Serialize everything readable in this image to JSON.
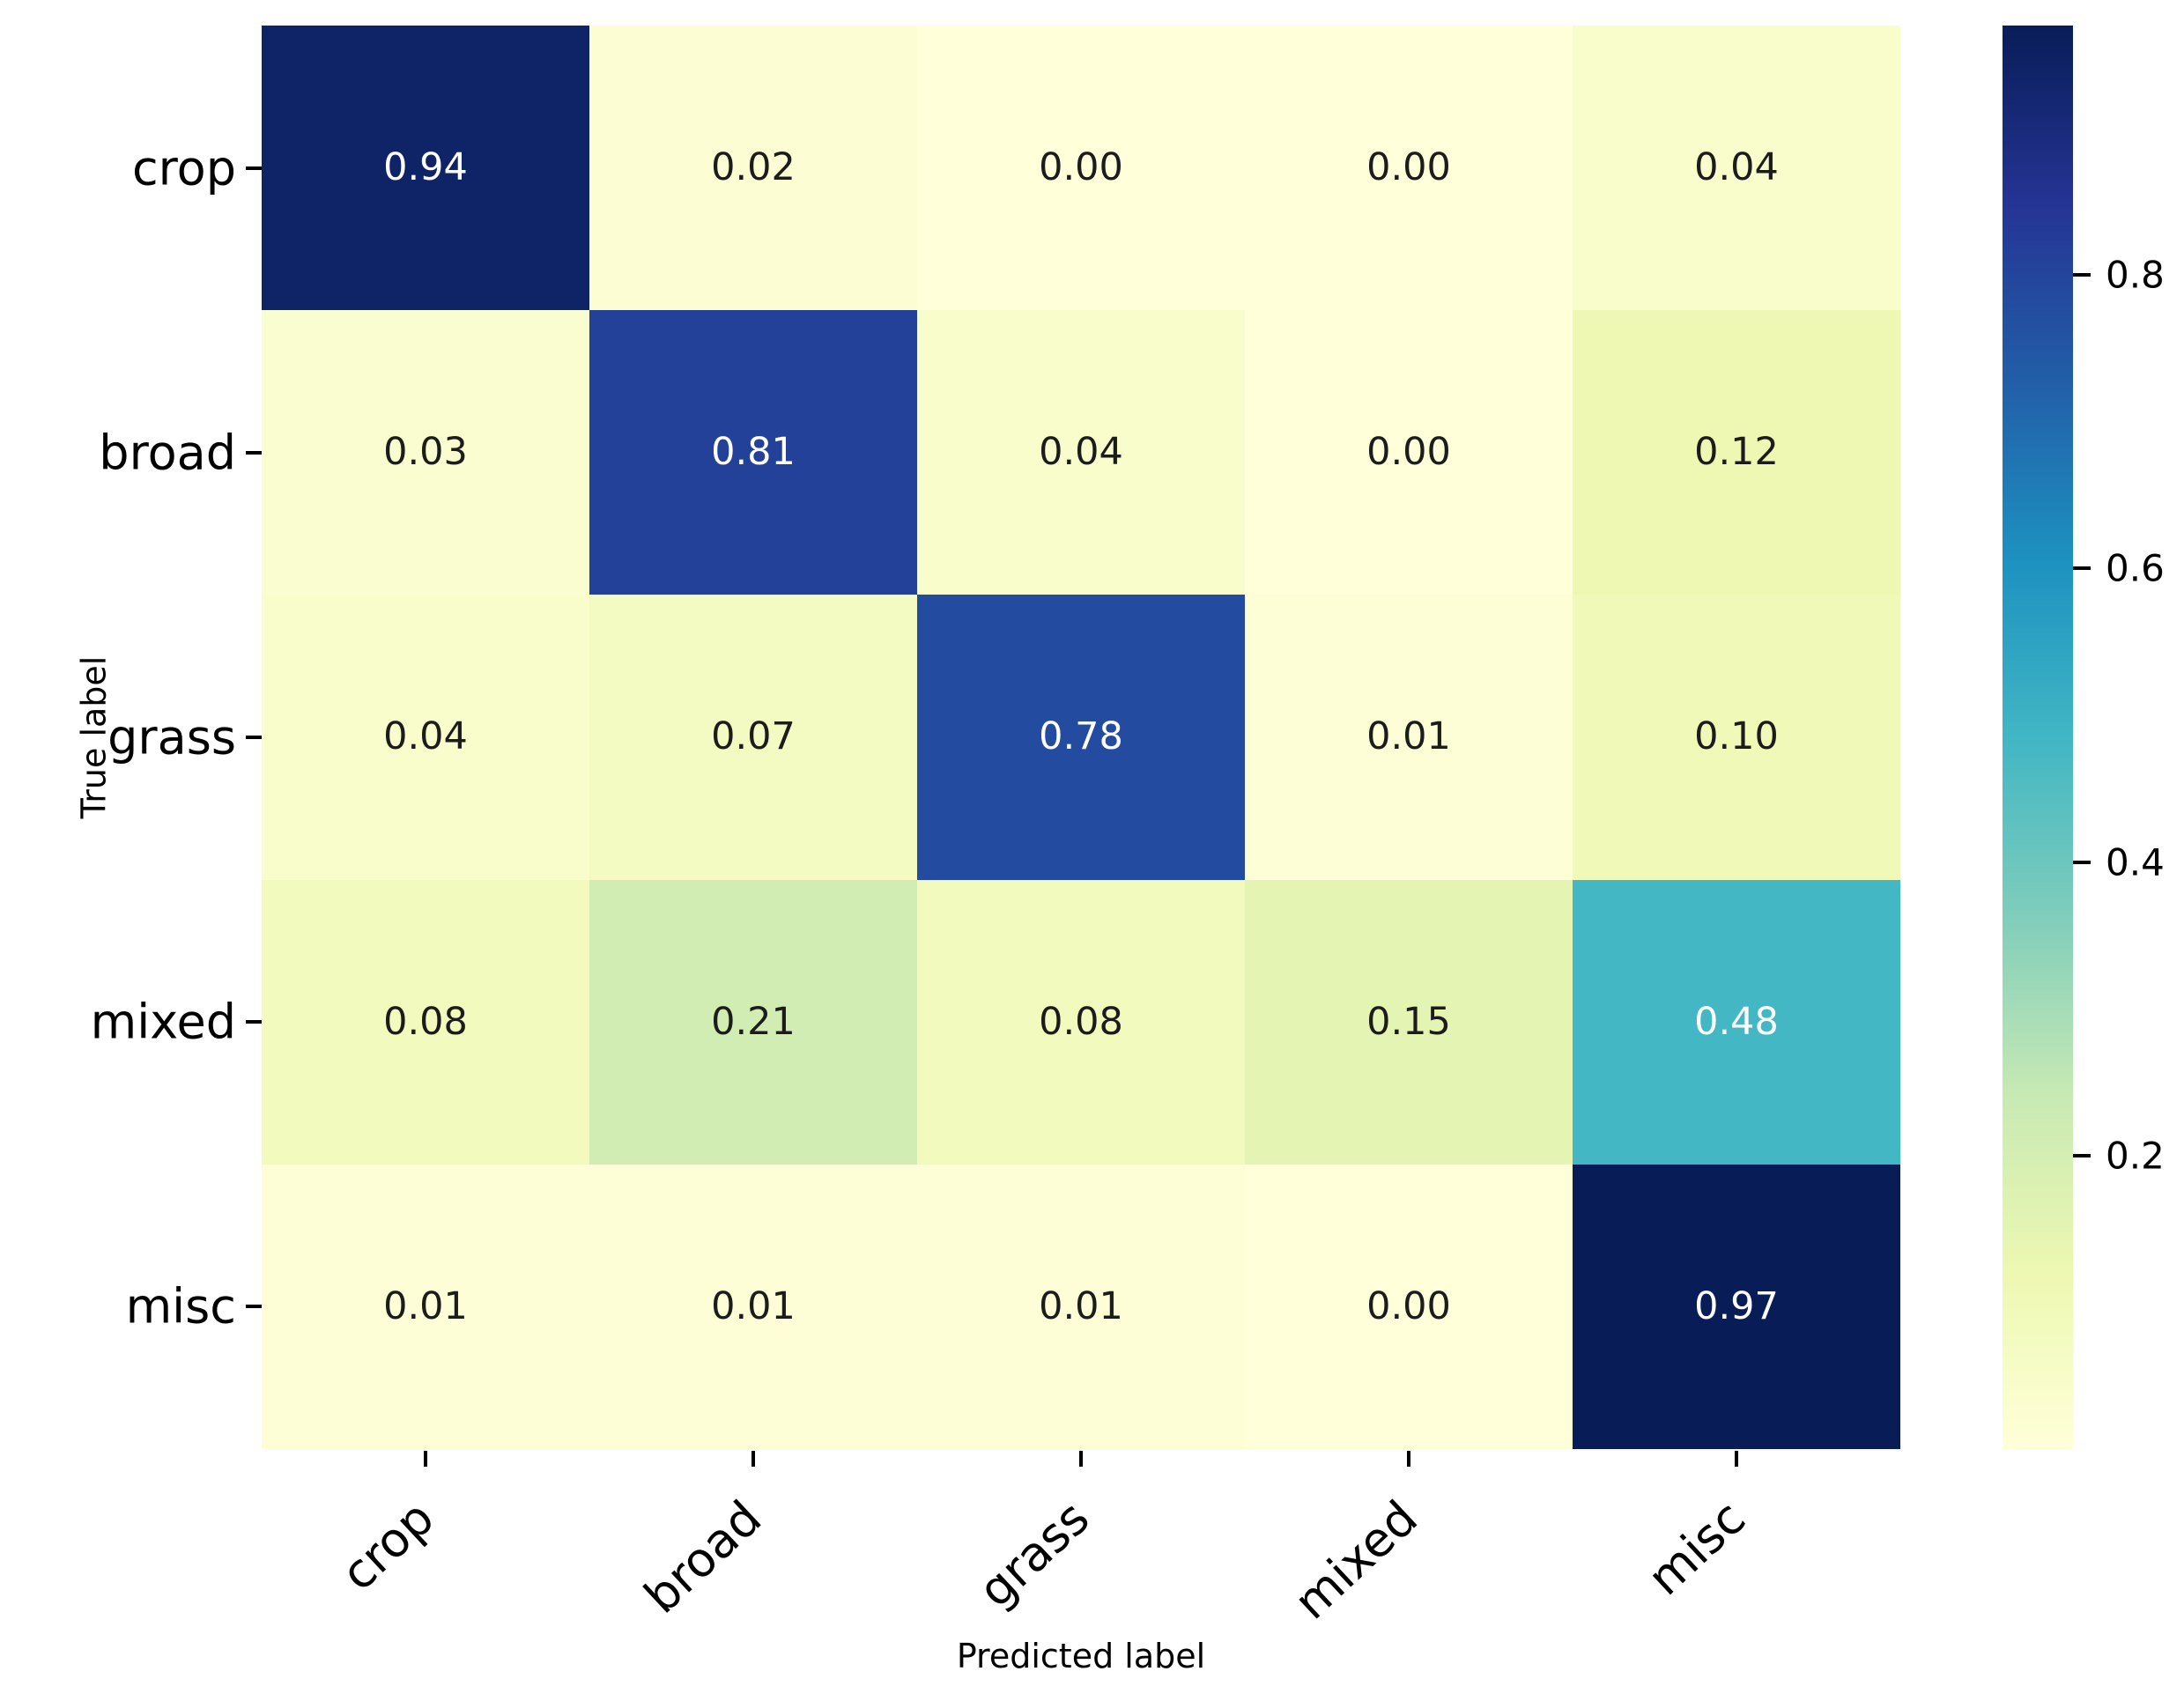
{
  "figure": {
    "background": "#ffffff",
    "xaxis_title": "Predicted label",
    "yaxis_title": "True label"
  },
  "chart_data": {
    "type": "heatmap",
    "title": "",
    "xlabel": "Predicted label",
    "ylabel": "True label",
    "x_categories": [
      "crop",
      "broad",
      "grass",
      "mixed",
      "misc"
    ],
    "y_categories": [
      "crop",
      "broad",
      "grass",
      "mixed",
      "misc"
    ],
    "matrix": [
      [
        0.94,
        0.02,
        0.0,
        0.0,
        0.04
      ],
      [
        0.03,
        0.81,
        0.04,
        0.0,
        0.12
      ],
      [
        0.04,
        0.07,
        0.78,
        0.01,
        0.1
      ],
      [
        0.08,
        0.21,
        0.08,
        0.15,
        0.48
      ],
      [
        0.01,
        0.01,
        0.01,
        0.0,
        0.97
      ]
    ],
    "value_format_decimals": 2,
    "vmin": 0.0,
    "vmax": 0.97,
    "colormap_name": "YlGnBu",
    "cell_colors": [
      [
        "#0f2367",
        "#fcfdd2",
        "#ffffd9",
        "#ffffd9",
        "#f9fccb"
      ],
      [
        "#fafdcf",
        "#24419a",
        "#f9fccb",
        "#ffffd9",
        "#eef8b2"
      ],
      [
        "#f9fccb",
        "#f4fbc2",
        "#234ba0",
        "#fdfed5",
        "#f0f9b8"
      ],
      [
        "#f3fabe",
        "#d1edb3",
        "#f3fabe",
        "#e4f4b2",
        "#44b7c4"
      ],
      [
        "#fdfed5",
        "#fdfed5",
        "#fdfed5",
        "#ffffd9",
        "#081d58"
      ]
    ],
    "cell_text_tones": [
      [
        "light",
        "dark",
        "dark",
        "dark",
        "dark"
      ],
      [
        "dark",
        "light",
        "dark",
        "dark",
        "dark"
      ],
      [
        "dark",
        "dark",
        "light",
        "dark",
        "dark"
      ],
      [
        "dark",
        "dark",
        "dark",
        "dark",
        "light"
      ],
      [
        "dark",
        "dark",
        "dark",
        "dark",
        "light"
      ]
    ],
    "colorbar": {
      "ticks": [
        0.2,
        0.4,
        0.6,
        0.8
      ],
      "tick_labels": [
        "0.2",
        "0.4",
        "0.6",
        "0.8"
      ],
      "gradient_stops_bottom_to_top": [
        "#ffffd9",
        "#edf8b1",
        "#c7e9b4",
        "#7fcdbb",
        "#41b6c4",
        "#1d91c0",
        "#225ea8",
        "#253494",
        "#081d58"
      ]
    },
    "legend_position": "right",
    "grid": false
  },
  "colors": {
    "annotation_dark": "#1c1c1c",
    "annotation_light": "#ffffff",
    "tick_color": "#000000",
    "background": "#ffffff"
  }
}
